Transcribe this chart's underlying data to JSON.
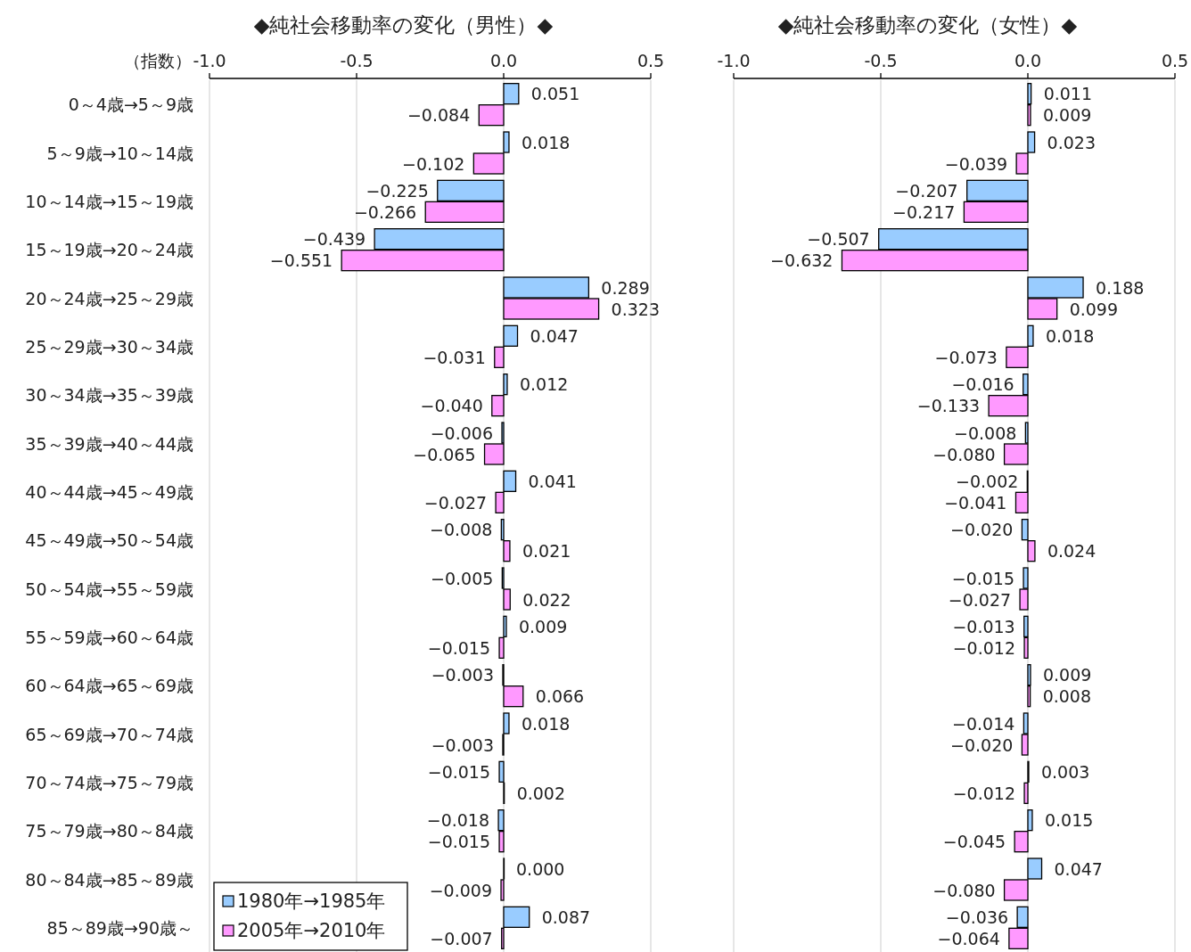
{
  "chart_data": [
    {
      "type": "bar",
      "orientation": "horizontal",
      "title": "◆純社会移動率の変化（男性）◆",
      "xlabel": "（指数）",
      "categories": [
        "0～4歳→5～9歳",
        "5～9歳→10～14歳",
        "10～14歳→15～19歳",
        "15～19歳→20～24歳",
        "20～24歳→25～29歳",
        "25～29歳→30～34歳",
        "30～34歳→35～39歳",
        "35～39歳→40～44歳",
        "40～44歳→45～49歳",
        "45～49歳→50～54歳",
        "50～54歳→55～59歳",
        "55～59歳→60～64歳",
        "60～64歳→65～69歳",
        "65～69歳→70～74歳",
        "70～74歳→75～79歳",
        "75～79歳→80～84歳",
        "80～84歳→85～89歳",
        "85～89歳→90歳～"
      ],
      "series": [
        {
          "name": "1980年→1985年",
          "color": "#99ccff",
          "values": [
            0.051,
            0.018,
            -0.225,
            -0.439,
            0.289,
            0.047,
            0.012,
            -0.006,
            0.041,
            -0.008,
            -0.005,
            0.009,
            -0.003,
            0.018,
            -0.015,
            -0.018,
            0.0,
            0.087
          ],
          "value_labels": [
            "0.051",
            "0.018",
            "−0.225",
            "−0.439",
            "0.289",
            "0.047",
            "0.012",
            "−0.006",
            "0.041",
            "−0.008",
            "−0.005",
            "0.009",
            "−0.003",
            "0.018",
            "−0.015",
            "−0.018",
            "0.000",
            "0.087"
          ]
        },
        {
          "name": "2005年→2010年",
          "color": "#ff99ff",
          "values": [
            -0.084,
            -0.102,
            -0.266,
            -0.551,
            0.323,
            -0.031,
            -0.04,
            -0.065,
            -0.027,
            0.021,
            0.022,
            -0.015,
            0.066,
            -0.003,
            0.002,
            -0.015,
            -0.009,
            -0.007
          ],
          "value_labels": [
            "−0.084",
            "−0.102",
            "−0.266",
            "−0.551",
            "0.323",
            "−0.031",
            "−0.040",
            "−0.065",
            "−0.027",
            "0.021",
            "0.022",
            "−0.015",
            "0.066",
            "−0.003",
            "0.002",
            "−0.015",
            "−0.009",
            "−0.007"
          ]
        }
      ],
      "xlim": [
        -1.0,
        0.5
      ],
      "xticks": [
        {
          "value": -1.0,
          "label": "-1.0"
        },
        {
          "value": -0.5,
          "label": "-0.5"
        },
        {
          "value": 0,
          "label": "0.0"
        },
        {
          "value": 0.5,
          "label": "0.5"
        }
      ],
      "grid": "x",
      "legend": "bottom left"
    },
    {
      "type": "bar",
      "orientation": "horizontal",
      "title": "◆純社会移動率の変化（女性）◆",
      "categories": [
        null,
        null,
        null,
        null,
        null,
        null,
        null,
        null,
        null,
        null,
        null,
        null,
        null,
        null,
        null,
        null,
        null,
        null
      ],
      "series": [
        {
          "color": "#99ccff",
          "values": [
            0.011,
            0.023,
            -0.207,
            -0.507,
            0.188,
            0.018,
            -0.016,
            -0.008,
            -0.002,
            -0.02,
            -0.015,
            -0.013,
            0.009,
            -0.014,
            0.003,
            0.015,
            0.047,
            -0.036
          ],
          "value_labels": [
            "0.011",
            "0.023",
            "−0.207",
            "−0.507",
            "0.188",
            "0.018",
            "−0.016",
            "−0.008",
            "−0.002",
            "−0.020",
            "−0.015",
            "−0.013",
            "0.009",
            "−0.014",
            "0.003",
            "0.015",
            "0.047",
            "−0.036"
          ]
        },
        {
          "color": "#ff99ff",
          "values": [
            0.009,
            -0.039,
            -0.217,
            -0.632,
            0.099,
            -0.073,
            -0.133,
            -0.08,
            -0.041,
            0.024,
            -0.027,
            -0.012,
            0.008,
            -0.02,
            -0.012,
            -0.045,
            -0.08,
            -0.064
          ],
          "value_labels": [
            "0.009",
            "−0.039",
            "−0.217",
            "−0.632",
            "0.099",
            "−0.073",
            "−0.133",
            "−0.080",
            "−0.041",
            "0.024",
            "−0.027",
            "−0.012",
            "0.008",
            "−0.020",
            "−0.012",
            "−0.045",
            "−0.080",
            "−0.064"
          ]
        }
      ],
      "xlim": [
        -1.0,
        0.5
      ],
      "xticks": [
        {
          "value": -1.0,
          "label": "-1.0"
        },
        {
          "value": -0.5,
          "label": "-0.5"
        },
        {
          "value": 0,
          "label": "0.0"
        },
        {
          "value": 0.5,
          "label": "0.5"
        }
      ],
      "grid": "x",
      "tick_labels": "x"
    }
  ]
}
